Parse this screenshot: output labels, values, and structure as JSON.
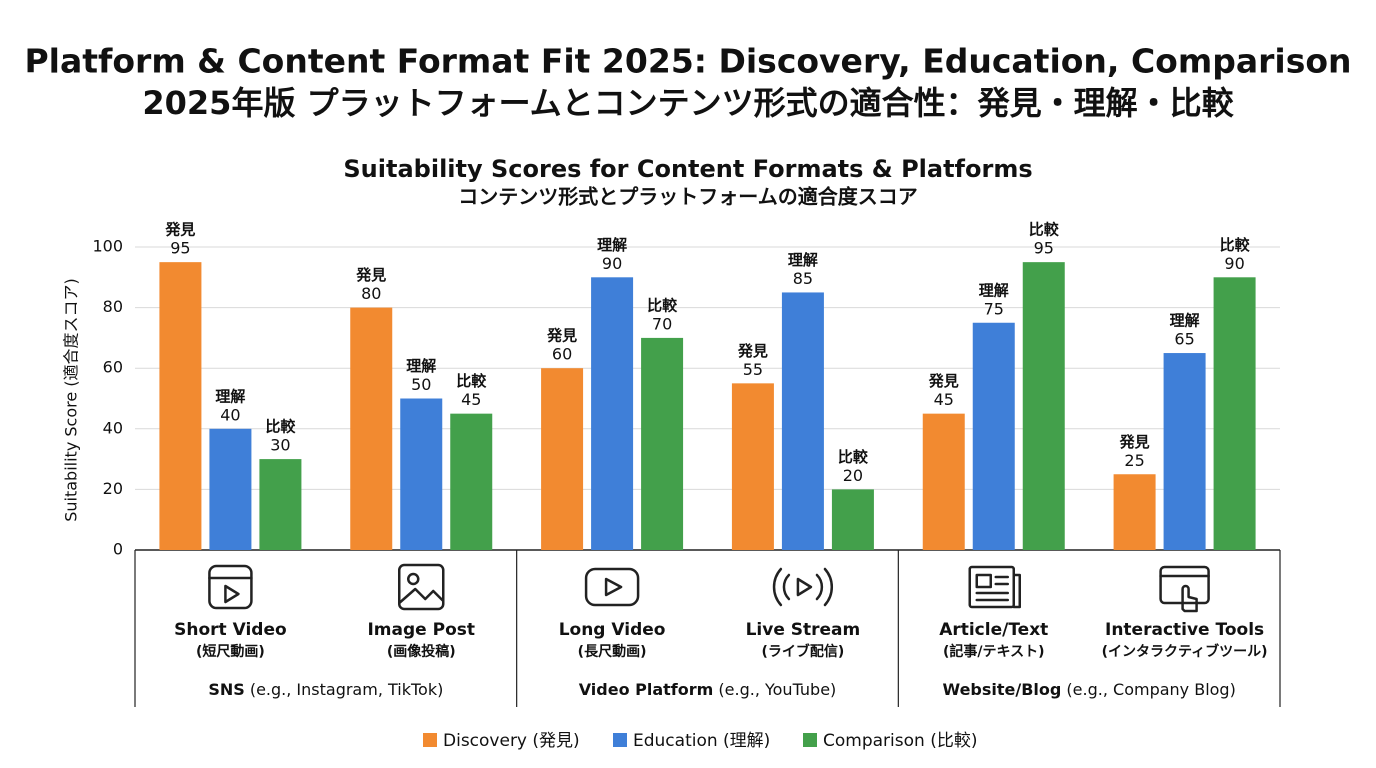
{
  "chart_data": {
    "type": "bar",
    "title": "Platform & Content Format Fit 2025: Discovery, Education, Comparison",
    "title_ja": "2025年版 プラットフォームとコンテンツ形式の適合性：発見・理解・比較",
    "subtitle": "Suitability Scores for Content Formats & Platforms",
    "subtitle_ja": "コンテンツ形式とプラットフォームの適合度スコア",
    "y_label": "Suitability Score (適合度スコア)",
    "categories": [
      "Short Video",
      "Image Post",
      "Long Video",
      "Live Stream",
      "Article/Text",
      "Interactive Tools"
    ],
    "category_notes": [
      "(短尺動画)",
      "(画像投稿)",
      "(長尺動画)",
      "(ライブ配信)",
      "(記事/テキスト)",
      "(インタラクティブツール)"
    ],
    "groups": [
      {
        "name": "SNS",
        "note": " (e.g., Instagram, TikTok)"
      },
      {
        "name": "Video Platform",
        "note": " (e.g., YouTube)"
      },
      {
        "name": "Website/Blog",
        "note": " (e.g., Company Blog)"
      }
    ],
    "series": [
      {
        "name": "Discovery (発見)",
        "label": "発見",
        "color": "#f28a30",
        "values": [
          95,
          80,
          60,
          55,
          45,
          25
        ]
      },
      {
        "name": "Education (理解)",
        "label": "理解",
        "color": "#3f7fd8",
        "values": [
          40,
          50,
          90,
          85,
          75,
          65
        ]
      },
      {
        "name": "Comparison (比較)",
        "label": "比較",
        "color": "#43a04b",
        "values": [
          30,
          45,
          70,
          20,
          95,
          90
        ]
      }
    ],
    "ylim": [
      0,
      100
    ],
    "yticks": [
      0,
      20,
      40,
      60,
      80,
      100
    ],
    "grid": true
  }
}
